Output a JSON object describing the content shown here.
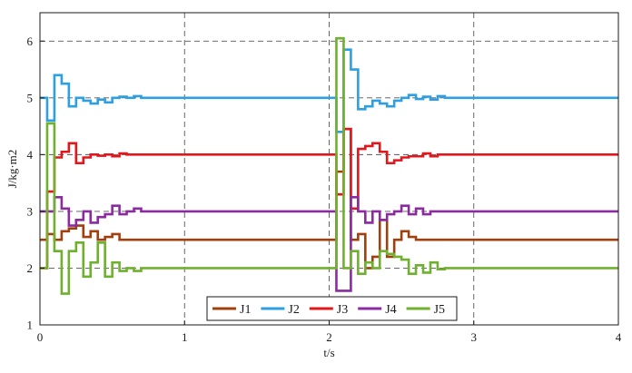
{
  "chart_data": {
    "type": "line",
    "title": "",
    "xlabel": "t/s",
    "ylabel": "J/kg·m2",
    "xlim": [
      0,
      4
    ],
    "ylim": [
      1,
      6.5
    ],
    "xticks": [
      "0",
      "1",
      "2",
      "3",
      "4"
    ],
    "yticks": [
      "1",
      "2",
      "3",
      "4",
      "5",
      "6"
    ],
    "grid": "dashed",
    "legend_position": "bottom-center",
    "series": [
      {
        "name": "J1",
        "color": "#a0400f",
        "points": [
          [
            0,
            2.5
          ],
          [
            0.05,
            2.5
          ],
          [
            0.05,
            2.6
          ],
          [
            0.1,
            2.6
          ],
          [
            0.1,
            2.5
          ],
          [
            0.15,
            2.5
          ],
          [
            0.15,
            2.65
          ],
          [
            0.2,
            2.65
          ],
          [
            0.2,
            2.7
          ],
          [
            0.25,
            2.7
          ],
          [
            0.25,
            2.75
          ],
          [
            0.3,
            2.75
          ],
          [
            0.3,
            2.55
          ],
          [
            0.35,
            2.55
          ],
          [
            0.35,
            2.65
          ],
          [
            0.4,
            2.65
          ],
          [
            0.4,
            2.5
          ],
          [
            0.45,
            2.5
          ],
          [
            0.45,
            2.55
          ],
          [
            0.5,
            2.55
          ],
          [
            0.5,
            2.6
          ],
          [
            0.55,
            2.6
          ],
          [
            0.55,
            2.5
          ],
          [
            2.05,
            2.5
          ],
          [
            2.05,
            3.7
          ],
          [
            2.1,
            3.7
          ],
          [
            2.1,
            4.45
          ],
          [
            2.15,
            4.45
          ],
          [
            2.15,
            2.5
          ],
          [
            2.2,
            2.5
          ],
          [
            2.2,
            2.6
          ],
          [
            2.25,
            2.6
          ],
          [
            2.25,
            2.0
          ],
          [
            2.3,
            2.0
          ],
          [
            2.3,
            2.2
          ],
          [
            2.35,
            2.2
          ],
          [
            2.35,
            2.85
          ],
          [
            2.4,
            2.85
          ],
          [
            2.4,
            2.2
          ],
          [
            2.45,
            2.2
          ],
          [
            2.45,
            2.5
          ],
          [
            2.5,
            2.5
          ],
          [
            2.5,
            2.65
          ],
          [
            2.55,
            2.65
          ],
          [
            2.55,
            2.55
          ],
          [
            2.6,
            2.55
          ],
          [
            2.6,
            2.5
          ],
          [
            4,
            2.5
          ]
        ]
      },
      {
        "name": "J2",
        "color": "#2e9fe0",
        "points": [
          [
            0,
            5.0
          ],
          [
            0.05,
            5.0
          ],
          [
            0.05,
            4.6
          ],
          [
            0.1,
            4.6
          ],
          [
            0.1,
            5.4
          ],
          [
            0.15,
            5.4
          ],
          [
            0.15,
            5.25
          ],
          [
            0.2,
            5.25
          ],
          [
            0.2,
            4.85
          ],
          [
            0.25,
            4.85
          ],
          [
            0.25,
            5.0
          ],
          [
            0.3,
            5.0
          ],
          [
            0.3,
            4.95
          ],
          [
            0.35,
            4.95
          ],
          [
            0.35,
            4.9
          ],
          [
            0.4,
            4.9
          ],
          [
            0.4,
            4.97
          ],
          [
            0.45,
            4.97
          ],
          [
            0.45,
            4.92
          ],
          [
            0.5,
            4.92
          ],
          [
            0.5,
            5.0
          ],
          [
            0.55,
            5.0
          ],
          [
            0.55,
            5.02
          ],
          [
            0.6,
            5.02
          ],
          [
            0.6,
            5.0
          ],
          [
            0.65,
            5.0
          ],
          [
            0.65,
            5.03
          ],
          [
            0.7,
            5.03
          ],
          [
            0.7,
            5.0
          ],
          [
            2.05,
            5.0
          ],
          [
            2.05,
            4.4
          ],
          [
            2.1,
            4.4
          ],
          [
            2.1,
            5.85
          ],
          [
            2.15,
            5.85
          ],
          [
            2.15,
            5.5
          ],
          [
            2.2,
            5.5
          ],
          [
            2.2,
            4.8
          ],
          [
            2.25,
            4.8
          ],
          [
            2.25,
            4.85
          ],
          [
            2.3,
            4.85
          ],
          [
            2.3,
            4.95
          ],
          [
            2.35,
            4.95
          ],
          [
            2.35,
            4.9
          ],
          [
            2.4,
            4.9
          ],
          [
            2.4,
            4.85
          ],
          [
            2.45,
            4.85
          ],
          [
            2.45,
            4.95
          ],
          [
            2.5,
            4.95
          ],
          [
            2.5,
            5.0
          ],
          [
            2.55,
            5.0
          ],
          [
            2.55,
            5.05
          ],
          [
            2.6,
            5.05
          ],
          [
            2.6,
            4.98
          ],
          [
            2.65,
            4.98
          ],
          [
            2.65,
            5.02
          ],
          [
            2.7,
            5.02
          ],
          [
            2.7,
            4.97
          ],
          [
            2.75,
            4.97
          ],
          [
            2.75,
            5.03
          ],
          [
            2.8,
            5.03
          ],
          [
            2.8,
            5.0
          ],
          [
            4,
            5.0
          ]
        ]
      },
      {
        "name": "J3",
        "color": "#e3161b",
        "points": [
          [
            0,
            2.0
          ],
          [
            0.05,
            2.0
          ],
          [
            0.05,
            3.35
          ],
          [
            0.1,
            3.35
          ],
          [
            0.1,
            3.95
          ],
          [
            0.15,
            3.95
          ],
          [
            0.15,
            4.05
          ],
          [
            0.2,
            4.05
          ],
          [
            0.2,
            4.2
          ],
          [
            0.25,
            4.2
          ],
          [
            0.25,
            3.85
          ],
          [
            0.3,
            3.85
          ],
          [
            0.3,
            3.95
          ],
          [
            0.35,
            3.95
          ],
          [
            0.35,
            4.0
          ],
          [
            0.4,
            4.0
          ],
          [
            0.4,
            3.98
          ],
          [
            0.45,
            3.98
          ],
          [
            0.45,
            4.0
          ],
          [
            0.5,
            4.0
          ],
          [
            0.5,
            3.97
          ],
          [
            0.55,
            3.97
          ],
          [
            0.55,
            4.02
          ],
          [
            0.6,
            4.02
          ],
          [
            0.6,
            4.0
          ],
          [
            2.05,
            4.0
          ],
          [
            2.05,
            3.3
          ],
          [
            2.1,
            3.3
          ],
          [
            2.1,
            4.45
          ],
          [
            2.15,
            4.45
          ],
          [
            2.15,
            3.05
          ],
          [
            2.2,
            3.05
          ],
          [
            2.2,
            4.1
          ],
          [
            2.25,
            4.1
          ],
          [
            2.25,
            4.15
          ],
          [
            2.3,
            4.15
          ],
          [
            2.3,
            4.2
          ],
          [
            2.35,
            4.2
          ],
          [
            2.35,
            4.05
          ],
          [
            2.4,
            4.05
          ],
          [
            2.4,
            3.85
          ],
          [
            2.45,
            3.85
          ],
          [
            2.45,
            3.9
          ],
          [
            2.5,
            3.9
          ],
          [
            2.5,
            3.95
          ],
          [
            2.55,
            3.95
          ],
          [
            2.55,
            3.97
          ],
          [
            2.65,
            3.97
          ],
          [
            2.65,
            4.02
          ],
          [
            2.7,
            4.02
          ],
          [
            2.7,
            3.97
          ],
          [
            2.75,
            3.97
          ],
          [
            2.75,
            4.0
          ],
          [
            4,
            4.0
          ]
        ]
      },
      {
        "name": "J4",
        "color": "#8a2ca0",
        "points": [
          [
            0,
            3.0
          ],
          [
            0.1,
            3.0
          ],
          [
            0.1,
            3.25
          ],
          [
            0.15,
            3.25
          ],
          [
            0.15,
            3.05
          ],
          [
            0.2,
            3.05
          ],
          [
            0.2,
            2.75
          ],
          [
            0.25,
            2.75
          ],
          [
            0.25,
            2.85
          ],
          [
            0.3,
            2.85
          ],
          [
            0.3,
            3.0
          ],
          [
            0.35,
            3.0
          ],
          [
            0.35,
            2.8
          ],
          [
            0.4,
            2.8
          ],
          [
            0.4,
            2.9
          ],
          [
            0.45,
            2.9
          ],
          [
            0.45,
            2.95
          ],
          [
            0.5,
            2.95
          ],
          [
            0.5,
            3.1
          ],
          [
            0.55,
            3.1
          ],
          [
            0.55,
            2.95
          ],
          [
            0.6,
            2.95
          ],
          [
            0.6,
            3.0
          ],
          [
            0.65,
            3.0
          ],
          [
            0.65,
            3.05
          ],
          [
            0.7,
            3.05
          ],
          [
            0.7,
            3.0
          ],
          [
            2.05,
            3.0
          ],
          [
            2.05,
            1.6
          ],
          [
            2.1,
            1.6
          ],
          [
            2.1,
            1.6
          ],
          [
            2.15,
            1.6
          ],
          [
            2.15,
            3.25
          ],
          [
            2.2,
            3.25
          ],
          [
            2.2,
            3.0
          ],
          [
            2.25,
            3.0
          ],
          [
            2.25,
            2.8
          ],
          [
            2.3,
            2.8
          ],
          [
            2.3,
            3.0
          ],
          [
            2.35,
            3.0
          ],
          [
            2.35,
            2.85
          ],
          [
            2.4,
            2.85
          ],
          [
            2.4,
            2.95
          ],
          [
            2.45,
            2.95
          ],
          [
            2.45,
            3.0
          ],
          [
            2.5,
            3.0
          ],
          [
            2.5,
            3.1
          ],
          [
            2.55,
            3.1
          ],
          [
            2.55,
            2.95
          ],
          [
            2.6,
            2.95
          ],
          [
            2.6,
            3.05
          ],
          [
            2.65,
            3.05
          ],
          [
            2.65,
            2.95
          ],
          [
            2.7,
            2.95
          ],
          [
            2.7,
            3.0
          ],
          [
            4,
            3.0
          ]
        ]
      },
      {
        "name": "J5",
        "color": "#6fb12f",
        "points": [
          [
            0,
            2.0
          ],
          [
            0.05,
            2.0
          ],
          [
            0.05,
            4.55
          ],
          [
            0.1,
            4.55
          ],
          [
            0.1,
            2.3
          ],
          [
            0.15,
            2.3
          ],
          [
            0.15,
            1.55
          ],
          [
            0.2,
            1.55
          ],
          [
            0.2,
            2.3
          ],
          [
            0.25,
            2.3
          ],
          [
            0.25,
            2.45
          ],
          [
            0.3,
            2.45
          ],
          [
            0.3,
            1.85
          ],
          [
            0.35,
            1.85
          ],
          [
            0.35,
            2.1
          ],
          [
            0.4,
            2.1
          ],
          [
            0.4,
            2.45
          ],
          [
            0.45,
            2.45
          ],
          [
            0.45,
            1.85
          ],
          [
            0.5,
            1.85
          ],
          [
            0.5,
            2.1
          ],
          [
            0.55,
            2.1
          ],
          [
            0.55,
            1.95
          ],
          [
            0.6,
            1.95
          ],
          [
            0.6,
            2.0
          ],
          [
            0.65,
            2.0
          ],
          [
            0.65,
            1.95
          ],
          [
            0.7,
            1.95
          ],
          [
            0.7,
            2.0
          ],
          [
            2.05,
            2.0
          ],
          [
            2.05,
            6.05
          ],
          [
            2.1,
            6.05
          ],
          [
            2.1,
            2.0
          ],
          [
            2.15,
            2.0
          ],
          [
            2.15,
            2.3
          ],
          [
            2.2,
            2.3
          ],
          [
            2.2,
            1.9
          ],
          [
            2.25,
            1.9
          ],
          [
            2.25,
            2.1
          ],
          [
            2.3,
            2.1
          ],
          [
            2.3,
            2.0
          ],
          [
            2.35,
            2.0
          ],
          [
            2.35,
            2.3
          ],
          [
            2.4,
            2.3
          ],
          [
            2.4,
            2.25
          ],
          [
            2.45,
            2.25
          ],
          [
            2.45,
            2.2
          ],
          [
            2.5,
            2.2
          ],
          [
            2.5,
            2.15
          ],
          [
            2.55,
            2.15
          ],
          [
            2.55,
            1.9
          ],
          [
            2.6,
            1.9
          ],
          [
            2.6,
            2.05
          ],
          [
            2.65,
            2.05
          ],
          [
            2.65,
            1.92
          ],
          [
            2.7,
            1.92
          ],
          [
            2.7,
            2.1
          ],
          [
            2.75,
            2.1
          ],
          [
            2.75,
            1.98
          ],
          [
            2.8,
            1.98
          ],
          [
            2.8,
            2.0
          ],
          [
            4,
            2.0
          ]
        ]
      }
    ]
  }
}
